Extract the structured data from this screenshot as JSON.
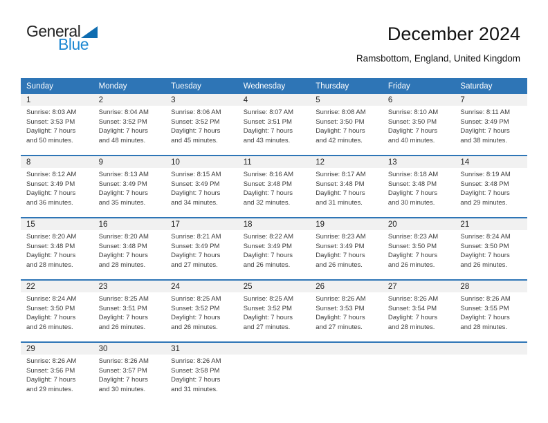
{
  "logo": {
    "line1": "General",
    "line2": "Blue",
    "triangle_icon": "blue-right-triangle"
  },
  "header": {
    "title": "December 2024",
    "subtitle": "Ramsbottom, England, United Kingdom"
  },
  "colors": {
    "header_bar": "#2E75B6",
    "week_divider": "#2E75B6",
    "day_number_band": "#F1F1F1",
    "logo_blue_text": "#1E88D2",
    "logo_triangle": "#0E6CB0"
  },
  "weekday_headers": [
    "Sunday",
    "Monday",
    "Tuesday",
    "Wednesday",
    "Thursday",
    "Friday",
    "Saturday"
  ],
  "field_labels": {
    "sunrise": "Sunrise:",
    "sunset": "Sunset:",
    "daylight": "Daylight:"
  },
  "weeks": [
    {
      "days": [
        {
          "date": "1",
          "sunrise": "8:03 AM",
          "sunset": "3:53 PM",
          "daylight": "7 hours and 50 minutes."
        },
        {
          "date": "2",
          "sunrise": "8:04 AM",
          "sunset": "3:52 PM",
          "daylight": "7 hours and 48 minutes."
        },
        {
          "date": "3",
          "sunrise": "8:06 AM",
          "sunset": "3:52 PM",
          "daylight": "7 hours and 45 minutes."
        },
        {
          "date": "4",
          "sunrise": "8:07 AM",
          "sunset": "3:51 PM",
          "daylight": "7 hours and 43 minutes."
        },
        {
          "date": "5",
          "sunrise": "8:08 AM",
          "sunset": "3:50 PM",
          "daylight": "7 hours and 42 minutes."
        },
        {
          "date": "6",
          "sunrise": "8:10 AM",
          "sunset": "3:50 PM",
          "daylight": "7 hours and 40 minutes."
        },
        {
          "date": "7",
          "sunrise": "8:11 AM",
          "sunset": "3:49 PM",
          "daylight": "7 hours and 38 minutes."
        }
      ]
    },
    {
      "days": [
        {
          "date": "8",
          "sunrise": "8:12 AM",
          "sunset": "3:49 PM",
          "daylight": "7 hours and 36 minutes."
        },
        {
          "date": "9",
          "sunrise": "8:13 AM",
          "sunset": "3:49 PM",
          "daylight": "7 hours and 35 minutes."
        },
        {
          "date": "10",
          "sunrise": "8:15 AM",
          "sunset": "3:49 PM",
          "daylight": "7 hours and 34 minutes."
        },
        {
          "date": "11",
          "sunrise": "8:16 AM",
          "sunset": "3:48 PM",
          "daylight": "7 hours and 32 minutes."
        },
        {
          "date": "12",
          "sunrise": "8:17 AM",
          "sunset": "3:48 PM",
          "daylight": "7 hours and 31 minutes."
        },
        {
          "date": "13",
          "sunrise": "8:18 AM",
          "sunset": "3:48 PM",
          "daylight": "7 hours and 30 minutes."
        },
        {
          "date": "14",
          "sunrise": "8:19 AM",
          "sunset": "3:48 PM",
          "daylight": "7 hours and 29 minutes."
        }
      ]
    },
    {
      "days": [
        {
          "date": "15",
          "sunrise": "8:20 AM",
          "sunset": "3:48 PM",
          "daylight": "7 hours and 28 minutes."
        },
        {
          "date": "16",
          "sunrise": "8:20 AM",
          "sunset": "3:48 PM",
          "daylight": "7 hours and 28 minutes."
        },
        {
          "date": "17",
          "sunrise": "8:21 AM",
          "sunset": "3:49 PM",
          "daylight": "7 hours and 27 minutes."
        },
        {
          "date": "18",
          "sunrise": "8:22 AM",
          "sunset": "3:49 PM",
          "daylight": "7 hours and 26 minutes."
        },
        {
          "date": "19",
          "sunrise": "8:23 AM",
          "sunset": "3:49 PM",
          "daylight": "7 hours and 26 minutes."
        },
        {
          "date": "20",
          "sunrise": "8:23 AM",
          "sunset": "3:50 PM",
          "daylight": "7 hours and 26 minutes."
        },
        {
          "date": "21",
          "sunrise": "8:24 AM",
          "sunset": "3:50 PM",
          "daylight": "7 hours and 26 minutes."
        }
      ]
    },
    {
      "days": [
        {
          "date": "22",
          "sunrise": "8:24 AM",
          "sunset": "3:50 PM",
          "daylight": "7 hours and 26 minutes."
        },
        {
          "date": "23",
          "sunrise": "8:25 AM",
          "sunset": "3:51 PM",
          "daylight": "7 hours and 26 minutes."
        },
        {
          "date": "24",
          "sunrise": "8:25 AM",
          "sunset": "3:52 PM",
          "daylight": "7 hours and 26 minutes."
        },
        {
          "date": "25",
          "sunrise": "8:25 AM",
          "sunset": "3:52 PM",
          "daylight": "7 hours and 27 minutes."
        },
        {
          "date": "26",
          "sunrise": "8:26 AM",
          "sunset": "3:53 PM",
          "daylight": "7 hours and 27 minutes."
        },
        {
          "date": "27",
          "sunrise": "8:26 AM",
          "sunset": "3:54 PM",
          "daylight": "7 hours and 28 minutes."
        },
        {
          "date": "28",
          "sunrise": "8:26 AM",
          "sunset": "3:55 PM",
          "daylight": "7 hours and 28 minutes."
        }
      ]
    },
    {
      "days": [
        {
          "date": "29",
          "sunrise": "8:26 AM",
          "sunset": "3:56 PM",
          "daylight": "7 hours and 29 minutes."
        },
        {
          "date": "30",
          "sunrise": "8:26 AM",
          "sunset": "3:57 PM",
          "daylight": "7 hours and 30 minutes."
        },
        {
          "date": "31",
          "sunrise": "8:26 AM",
          "sunset": "3:58 PM",
          "daylight": "7 hours and 31 minutes."
        },
        null,
        null,
        null,
        null
      ]
    }
  ]
}
